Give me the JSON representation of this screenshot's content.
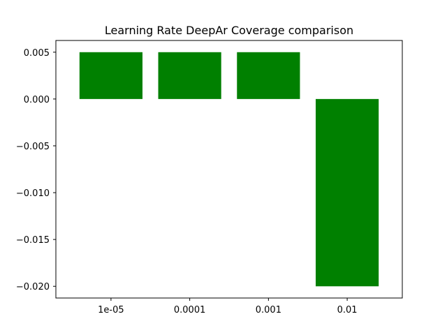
{
  "chart_data": {
    "type": "bar",
    "title": "Learning Rate DeepAr Coverage comparison",
    "xlabel": "",
    "ylabel": "",
    "categories": [
      "1e-05",
      "0.0001",
      "0.001",
      "0.01"
    ],
    "values": [
      0.005,
      0.005,
      0.005,
      -0.02
    ],
    "ylim": [
      -0.02125,
      0.00625
    ],
    "yticks": [
      0.005,
      0.0,
      -0.005,
      -0.01,
      -0.015,
      -0.02
    ],
    "ytick_labels": [
      "0.005",
      "0.000",
      "−0.005",
      "−0.010",
      "−0.015",
      "−0.020"
    ],
    "bar_color": "#008000",
    "grid": false,
    "legend": "none"
  }
}
